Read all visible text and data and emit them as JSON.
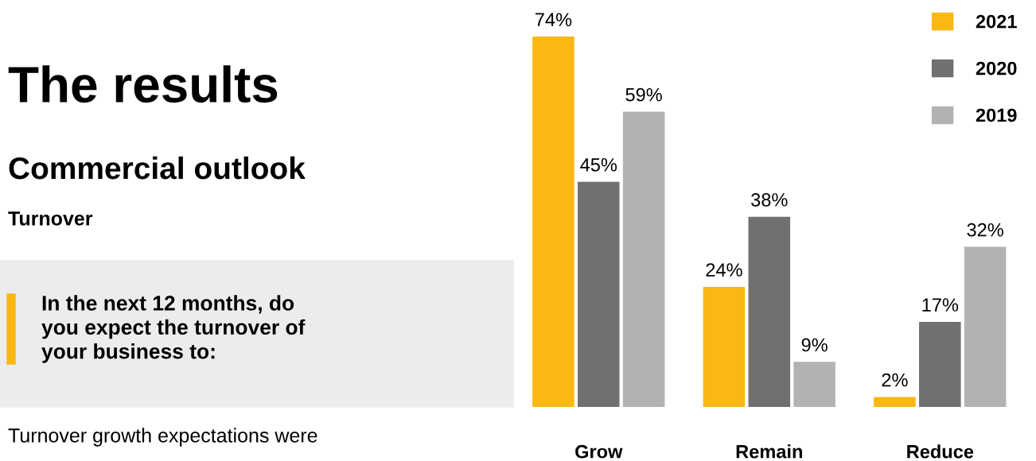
{
  "chart_data": {
    "type": "bar",
    "title": "The results",
    "subtitle": "Commercial outlook",
    "annotations": [
      "Turnover",
      "In the next 12 months, do\nyou expect the turnover of\nyour business to:",
      "Turnover growth expectations were"
    ],
    "categories": [
      "Grow",
      "Remain",
      "Reduce"
    ],
    "series": [
      {
        "name": "2021",
        "color": "#fbb714",
        "values": [
          74,
          24,
          2
        ],
        "value_labels": [
          "74%",
          "24%",
          "2%"
        ]
      },
      {
        "name": "2020",
        "color": "#707070",
        "values": [
          45,
          38,
          17
        ],
        "value_labels": [
          "45%",
          "38%",
          "17%"
        ]
      },
      {
        "name": "2019",
        "color": "#b2b2b2",
        "values": [
          59,
          9,
          32
        ],
        "value_labels": [
          "59%",
          "9%",
          "32%"
        ]
      }
    ],
    "legend": "top right",
    "grid": false
  }
}
